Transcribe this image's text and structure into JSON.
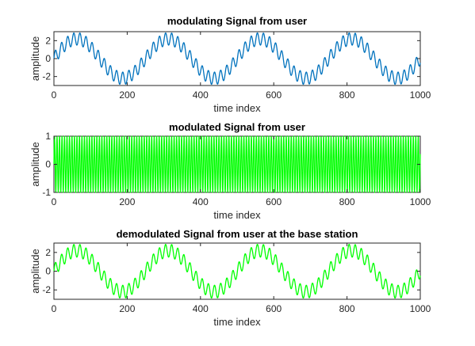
{
  "chart_data": [
    {
      "type": "line",
      "title": "modulating Signal from user",
      "xlabel": "time index",
      "ylabel": "amplitude",
      "xlim": [
        0,
        1000
      ],
      "ylim": [
        -3,
        3
      ],
      "xticks": [
        0,
        200,
        400,
        600,
        800,
        1000
      ],
      "yticks": [
        -2,
        0,
        2
      ],
      "color": "#0072bd",
      "series": [
        {
          "components": [
            {
              "amplitude": 2.2,
              "period": 250,
              "phase_deg": 0
            },
            {
              "amplitude": 0.7,
              "period": 16.7,
              "phase_deg": 0
            }
          ]
        }
      ]
    },
    {
      "type": "area",
      "title": "modulated Signal from user",
      "xlabel": "time index",
      "ylabel": "amplitude",
      "xlim": [
        0,
        1000
      ],
      "ylim": [
        -1,
        1
      ],
      "xticks": [
        0,
        200,
        400,
        600,
        800,
        1000
      ],
      "yticks": [
        -1,
        0,
        1
      ],
      "color": "#00ff00",
      "series": [
        {
          "components": [
            {
              "amplitude": 1,
              "period": 6.8,
              "phase_deg": 0
            }
          ]
        }
      ]
    },
    {
      "type": "line",
      "title": "demodulated Signal from user at the base station",
      "xlabel": "time index",
      "ylabel": "amplitude",
      "xlim": [
        0,
        1000
      ],
      "ylim": [
        -3,
        3
      ],
      "xticks": [
        0,
        200,
        400,
        600,
        800,
        1000
      ],
      "yticks": [
        -2,
        0,
        2
      ],
      "color": "#00ff00",
      "series": [
        {
          "components": [
            {
              "amplitude": 2.2,
              "period": 250,
              "phase_deg": 0
            },
            {
              "amplitude": 0.7,
              "period": 16.7,
              "phase_deg": 0
            }
          ]
        }
      ]
    }
  ]
}
